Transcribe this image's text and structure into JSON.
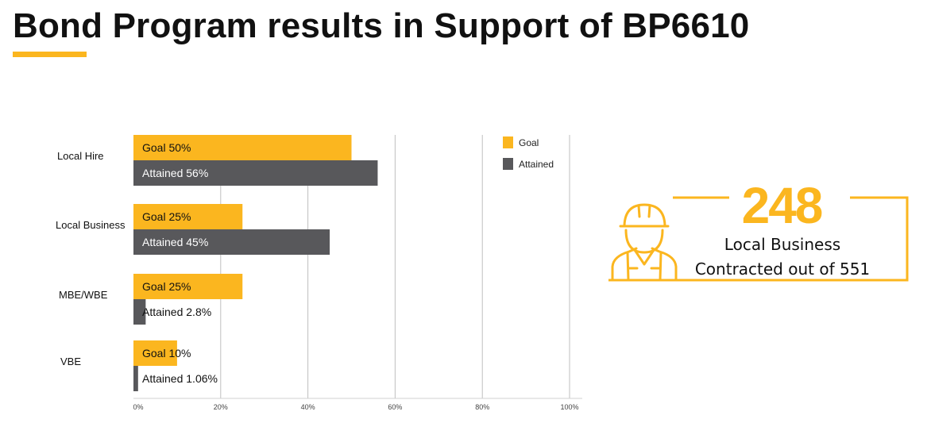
{
  "title": "Bond Program results in Support of BP6610",
  "colors": {
    "accent": "#FBB61F",
    "attained": "#58585B",
    "grid": "#BFBFBF"
  },
  "chart_data": {
    "type": "bar",
    "orientation": "horizontal",
    "categories": [
      "Local Hire",
      "Local Business",
      "MBE/WBE",
      "VBE"
    ],
    "series": [
      {
        "name": "Goal",
        "label_prefix": "Goal",
        "values": [
          50,
          25,
          25,
          10
        ],
        "value_labels": [
          "50%",
          "25%",
          "25%",
          "10%"
        ]
      },
      {
        "name": "Attained",
        "label_prefix": "Attained",
        "values": [
          56,
          45,
          2.8,
          1.06
        ],
        "value_labels": [
          "56%",
          "45%",
          "2.8%",
          "1.06%"
        ]
      }
    ],
    "xlim": [
      0,
      100
    ],
    "x_ticks": [
      0,
      20,
      40,
      60,
      80,
      100
    ],
    "x_tick_labels": [
      "0%",
      "20%",
      "40%",
      "60%",
      "80%",
      "100%"
    ],
    "grid": true,
    "legend": {
      "placement": "top-right",
      "entries": [
        "Goal",
        "Attained"
      ]
    }
  },
  "stat": {
    "number": "248",
    "line1": "Local Business",
    "line2": "Contracted out of 551",
    "icon": "construction-worker-icon"
  }
}
